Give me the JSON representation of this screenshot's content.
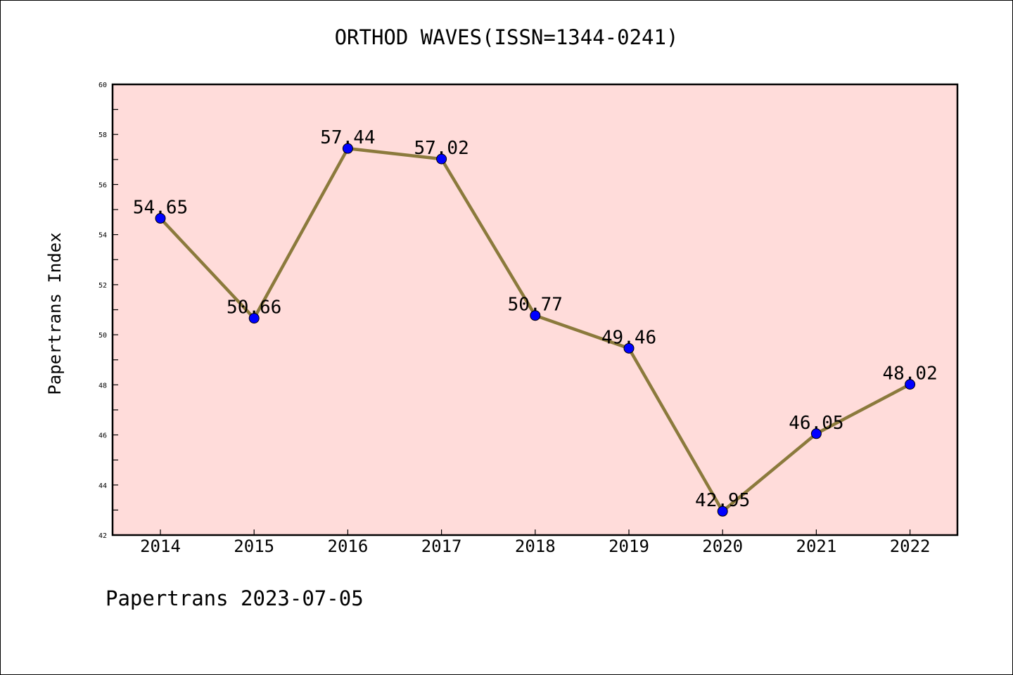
{
  "chart_data": {
    "type": "line",
    "title": "ORTHOD WAVES(ISSN=1344-0241)",
    "ylabel": "Papertrans Index",
    "xlabel": "",
    "categories": [
      "2014",
      "2015",
      "2016",
      "2017",
      "2018",
      "2019",
      "2020",
      "2021",
      "2022"
    ],
    "series": [
      {
        "values": [
          54.65,
          50.66,
          57.44,
          57.02,
          50.77,
          49.46,
          42.95,
          46.05,
          48.02
        ],
        "labels": [
          "54.65",
          "50.66",
          "57.44",
          "57.02",
          "50.77",
          "49.46",
          "42.95",
          "46.05",
          "48.02"
        ]
      }
    ],
    "ylim": [
      42,
      60
    ],
    "yticks": [
      "42",
      "44",
      "46",
      "48",
      "50",
      "52",
      "54",
      "56",
      "58",
      "60"
    ],
    "grid": false,
    "colors": {
      "background": "#ffdcda",
      "line": "#8b7a3c",
      "marker": "#0000ff"
    }
  },
  "footer": {
    "note": "Papertrans 2023-07-05"
  }
}
